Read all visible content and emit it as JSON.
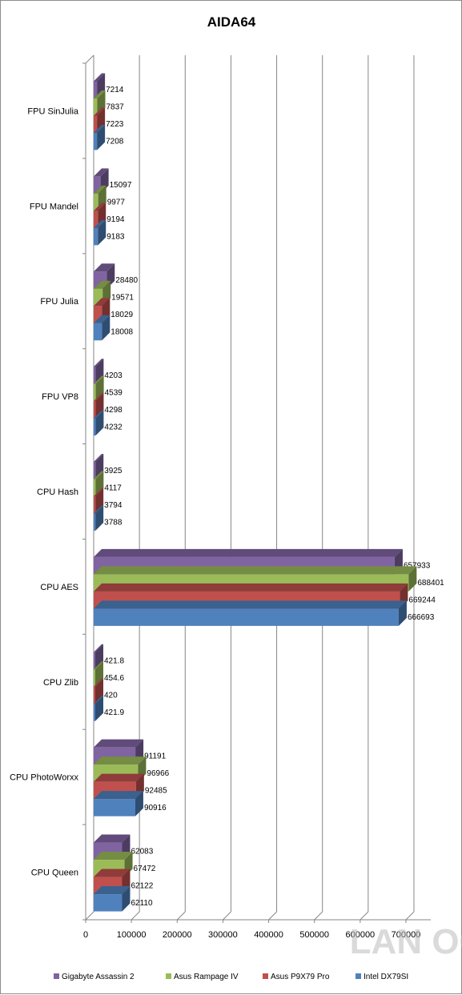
{
  "chart_data": {
    "type": "bar",
    "orientation": "horizontal",
    "three_d": true,
    "title": "AIDA64",
    "categories": [
      "FPU SinJulia",
      "FPU Mandel",
      "FPU Julia",
      "FPU VP8",
      "CPU Hash",
      "CPU AES",
      "CPU Zlib",
      "CPU PhotoWorxx",
      "CPU Queen"
    ],
    "series": [
      {
        "name": "Gigabyte Assassin 2",
        "color": "#8064a2",
        "values": [
          7214,
          15097,
          28480,
          4203,
          3925,
          657933,
          421.8,
          91191,
          62083
        ],
        "labels": [
          "7214",
          "15097",
          "28480",
          "4203",
          "3925",
          "657933",
          "421.8",
          "91191",
          "62083"
        ]
      },
      {
        "name": "Asus Rampage IV",
        "color": "#9bbb59",
        "values": [
          7837,
          9977,
          19571,
          4539,
          4117,
          688401,
          454.6,
          96966,
          67472
        ],
        "labels": [
          "7837",
          "9977",
          "19571",
          "4539",
          "4117",
          "688401",
          "454.6",
          "96966",
          "67472"
        ]
      },
      {
        "name": "Asus P9X79 Pro",
        "color": "#c0504d",
        "values": [
          7223,
          9194,
          18029,
          4298,
          3794,
          669244,
          420,
          92485,
          62122
        ],
        "labels": [
          "7223",
          "9194",
          "18029",
          "4298",
          "3794",
          "669244",
          "420",
          "92485",
          "62122"
        ]
      },
      {
        "name": "Intel DX79SI",
        "color": "#4f81bd",
        "values": [
          7208,
          9183,
          18008,
          4232,
          3788,
          666693,
          421.9,
          90916,
          62110
        ],
        "labels": [
          "7208",
          "9183",
          "18008",
          "4232",
          "3788",
          "666693",
          "421.9",
          "90916",
          "62110"
        ]
      }
    ],
    "xlim": [
      0,
      700000
    ],
    "xticks": [
      "0",
      "100000",
      "200000",
      "300000",
      "400000",
      "500000",
      "600000",
      "700000"
    ],
    "grid": true,
    "legend_position": "bottom"
  },
  "watermark": {
    "text": "LAN OC",
    "color": "#bdbdbd"
  }
}
